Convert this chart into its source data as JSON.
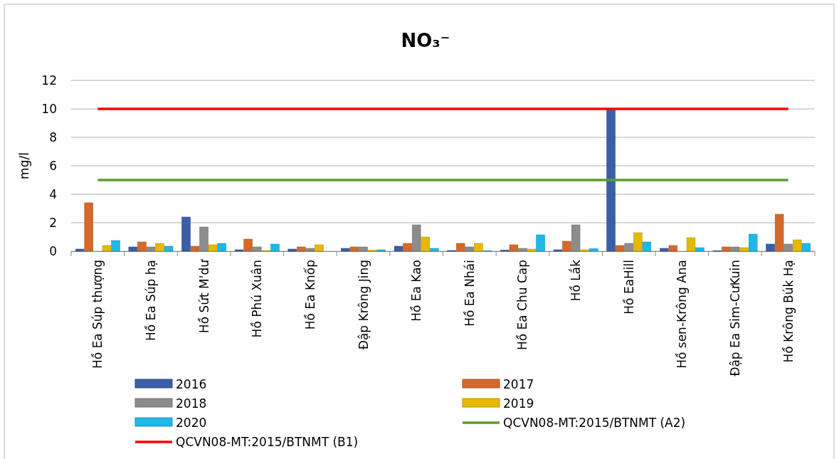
{
  "chart_data": {
    "type": "bar",
    "title": "NO₃⁻",
    "ylabel": "mg/l",
    "categories": [
      "Hồ Ea Súp thượng",
      "Hồ Ea Súp hạ",
      "Hồ Sứt M'dư",
      "Hồ Phú Xuân",
      "Hồ Ea Knốp",
      "Đập Krông Jing",
      "Hồ Ea Kao",
      "Hồ Ea Nhái",
      "Hồ Ea Chu Cap",
      "Hồ Lắk",
      "Hồ EaHill",
      "Hồ sen-Krông Ana",
      "Đập Ea Sim-CưKuin",
      "Hồ Krông Búk Hạ"
    ],
    "series": [
      {
        "name": "2016",
        "color": "#3a5ea8",
        "values": [
          0.15,
          0.3,
          2.4,
          0.1,
          0.15,
          0.2,
          0.35,
          0.05,
          0.08,
          0.1,
          10.0,
          0.2,
          0.03,
          0.5
        ]
      },
      {
        "name": "2017",
        "color": "#d4692a",
        "values": [
          3.4,
          0.65,
          0.35,
          0.85,
          0.3,
          0.3,
          0.55,
          0.55,
          0.45,
          0.7,
          0.4,
          0.4,
          0.3,
          2.6
        ]
      },
      {
        "name": "2018",
        "color": "#8c8c8c",
        "values": [
          0,
          0.3,
          1.7,
          0.3,
          0.2,
          0.3,
          1.85,
          0.3,
          0.2,
          1.85,
          0.55,
          0,
          0.3,
          0.5
        ]
      },
      {
        "name": "2019",
        "color": "#e6b800",
        "values": [
          0.4,
          0.55,
          0.45,
          0.05,
          0.45,
          0.08,
          1.0,
          0.55,
          0.15,
          0.1,
          1.3,
          0.95,
          0.25,
          0.8
        ]
      },
      {
        "name": "2020",
        "color": "#1fb8e8",
        "values": [
          0.75,
          0.35,
          0.55,
          0.5,
          0,
          0.1,
          0.2,
          0.03,
          1.15,
          0.18,
          0.65,
          0.25,
          1.2,
          0.55
        ]
      },
      {
        "name": "QCVN08-MT:2015/BTNMT (A2)",
        "type": "line",
        "color": "#5a9e2f",
        "values": [
          5,
          5,
          5,
          5,
          5,
          5,
          5,
          5,
          5,
          5,
          5,
          5,
          5,
          5
        ]
      },
      {
        "name": "QCVN08-MT:2015/BTNMT (B1)",
        "type": "line",
        "color": "#ff0000",
        "values": [
          10,
          10,
          10,
          10,
          10,
          10,
          10,
          10,
          10,
          10,
          10,
          10,
          10,
          10
        ]
      }
    ],
    "ylim": [
      0,
      12
    ],
    "yticks": [
      0,
      2,
      4,
      6,
      8,
      10,
      12
    ],
    "grid": "y",
    "legend": "bottom"
  }
}
